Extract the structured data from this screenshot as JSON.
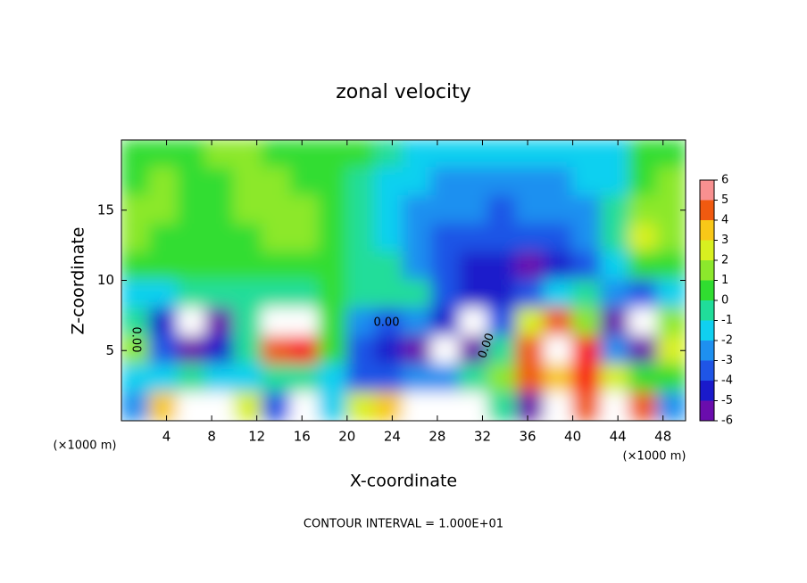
{
  "chart_data": {
    "type": "heatmap",
    "title": "zonal velocity",
    "x_label": "X-coordinate",
    "y_label": "Z-coordinate",
    "x_unit": "(×1000 m)",
    "footer": "CONTOUR INTERVAL = 1.000E+01",
    "contour_label": "0.00",
    "xlim": [
      0,
      50
    ],
    "ylim": [
      0,
      20
    ],
    "xticks": [
      4,
      8,
      12,
      16,
      20,
      24,
      28,
      32,
      36,
      40,
      44,
      48
    ],
    "yticks": [
      5,
      10,
      15
    ],
    "x": [
      1.25,
      3.75,
      6.25,
      8.75,
      11.25,
      13.75,
      16.25,
      18.75,
      21.25,
      23.75,
      26.25,
      28.75,
      31.25,
      33.75,
      36.25,
      38.75,
      41.25,
      43.75,
      46.25,
      48.75
    ],
    "y": [
      19,
      17,
      15,
      13,
      11,
      9,
      7,
      5,
      3,
      1
    ],
    "values": [
      [
        1,
        1,
        1,
        1.5,
        1.5,
        1,
        1,
        0.5,
        0.5,
        -0.5,
        -1,
        -1.5,
        -1.5,
        -1.5,
        -1.5,
        -1.5,
        -1.5,
        -1,
        0.5,
        1
      ],
      [
        1,
        1.5,
        1,
        1,
        1.5,
        1.5,
        1,
        0.5,
        0,
        -1,
        -1.5,
        -2,
        -2,
        -2,
        -2,
        -2,
        -1.5,
        -1,
        1,
        1.5
      ],
      [
        2,
        1.5,
        1,
        1,
        1.5,
        2,
        1.5,
        0.5,
        0,
        -1,
        -2,
        -2.5,
        -2.5,
        -3,
        -2.5,
        -2,
        -2,
        -0.5,
        1.5,
        2
      ],
      [
        1.5,
        1,
        0.5,
        0.5,
        1,
        1.5,
        1.5,
        0.5,
        0,
        -1,
        -2.5,
        -3.5,
        -3.5,
        -3,
        -3.5,
        -3,
        -2,
        0,
        2.5,
        2
      ],
      [
        1,
        0.5,
        0.5,
        0.5,
        0.5,
        1,
        1,
        0.5,
        0,
        -0.5,
        -2,
        -3.5,
        -4,
        -4.5,
        -5,
        -4,
        -3,
        -1,
        1,
        1
      ],
      [
        -1,
        -1,
        0,
        0,
        0,
        0,
        0,
        0.5,
        0,
        0,
        -0.5,
        -3,
        -4,
        -4,
        -3,
        -1,
        0,
        -2,
        -3,
        -1
      ],
      [
        0,
        -4,
        -6.5,
        -5,
        0,
        7,
        7,
        1,
        -2,
        -3,
        -2,
        -4,
        -7,
        -3,
        3,
        5,
        2,
        -5,
        -7,
        2
      ],
      [
        2,
        -3,
        -6,
        -4.5,
        0,
        5,
        6,
        1,
        -3,
        -4,
        -5,
        -8,
        -6,
        0,
        5,
        7,
        6,
        -2,
        -5,
        3
      ],
      [
        -1,
        -1,
        -0.5,
        -1,
        -1,
        -0.5,
        -0.5,
        -1,
        -3,
        -3.5,
        -2,
        -2,
        0,
        2,
        5,
        4,
        6,
        3,
        1,
        1
      ],
      [
        -2,
        4,
        7,
        7,
        3,
        -3,
        7,
        -1,
        3,
        4,
        7,
        8,
        7,
        0,
        -5,
        8,
        5,
        8,
        5,
        -2
      ]
    ],
    "colorbar": {
      "ticks": [
        -6,
        -5,
        -4,
        -3,
        -2,
        -1,
        0,
        1,
        2,
        3,
        4,
        5,
        6
      ],
      "colors": [
        "#6a0dad",
        "#1a1acb",
        "#1f55e6",
        "#1e90f0",
        "#10d0f0",
        "#20dd9a",
        "#30dd30",
        "#8ce82c",
        "#d8f020",
        "#f8c818",
        "#f05a10",
        "#f81818"
      ],
      "over_color": "#ffffff",
      "top_color": "#f89090"
    }
  }
}
